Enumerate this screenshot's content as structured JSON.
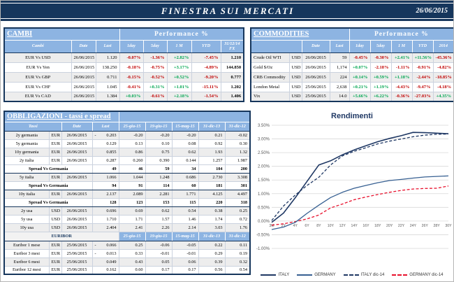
{
  "header": {
    "title": "FINESTRA SUI MERCATI",
    "date": "26/06/2015"
  },
  "colors": {
    "navy": "#16365C",
    "band_blue": "#8DB4E2",
    "positive": "#00A651",
    "negative": "#C00000",
    "shade": "#EDEDED"
  },
  "cambi": {
    "title": "CAMBI",
    "performance_header": "Performance  %",
    "columns": {
      "name": "Cambi",
      "date": "Date",
      "last": "Last",
      "p1": "1day",
      "p2": "5day",
      "p3": "1 M",
      "p4": "YTD",
      "fx": "31/12/14 FX"
    },
    "rows": [
      {
        "name": "EUR Vs USD",
        "date": "26/06/2015",
        "last": "1.120",
        "perf": [
          "-0.07%",
          "-1.36%",
          "+2.82%",
          "-7.45%"
        ],
        "fx": "1.210"
      },
      {
        "name": "EUR Vs Yen",
        "date": "26/06/2015",
        "last": "138.250",
        "perf": [
          "-0.18%",
          "-0.75%",
          "+3.17%",
          "-4.89%"
        ],
        "fx": "144.850"
      },
      {
        "name": "EUR Vs GBP",
        "date": "26/06/2015",
        "last": "0.711",
        "perf": [
          "-0.15%",
          "-0.52%",
          "+0.52%",
          "-9.20%"
        ],
        "fx": "0.777"
      },
      {
        "name": "EUR Vs CHF",
        "date": "26/06/2015",
        "last": "1.045",
        "perf": [
          "-0.41%",
          "+0.31%",
          "+1.01%",
          "-15.11%"
        ],
        "fx": "1.202"
      },
      {
        "name": "EUR Vs CAD",
        "date": "26/06/2015",
        "last": "1.384",
        "perf": [
          "+0.03%",
          "-0.61%",
          "+2.18%",
          "-1.54%"
        ],
        "fx": "1.406"
      }
    ]
  },
  "commodities": {
    "title": "COMMODITIES",
    "performance_header": "Performance  %",
    "columns": {
      "date": "Date",
      "last": "Last",
      "p1": "1day",
      "p2": "5day",
      "p3": "1 M",
      "p4": "YTD",
      "p5": "2014"
    },
    "rows": [
      {
        "name": "Crude Oil WTI",
        "ccy": "USD",
        "date": "26/06/2015",
        "last": "59",
        "perf": [
          "-0.45%",
          "-0.30%",
          "+2.41%",
          "+11.56%",
          "-45.36%"
        ]
      },
      {
        "name": "Gold $/Oz",
        "ccy": "USD",
        "date": "26/06/2015",
        "last": "1,174",
        "perf": [
          "+0.07%",
          "-2.18%",
          "-1.11%",
          "-0.91%",
          "-4.82%"
        ]
      },
      {
        "name": "CRB Commodity",
        "ccy": "USD",
        "date": "26/06/2015",
        "last": "224",
        "perf": [
          "+0.14%",
          "+0.59%",
          "+1.18%",
          "-2.44%",
          "-18.85%"
        ]
      },
      {
        "name": "London Metal",
        "ccy": "USD",
        "date": "25/06/2015",
        "last": "2,638",
        "perf": [
          "+0.21%",
          "+1.19%",
          "-4.43%",
          "-9.47%",
          "-4.18%"
        ]
      },
      {
        "name": "Vix",
        "ccy": "USD",
        "date": "25/06/2015",
        "last": "14.0",
        "perf": [
          "+5.66%",
          "+6.22%",
          "-0.36%",
          "-27.03%",
          "+4.35%"
        ]
      }
    ]
  },
  "obbligazioni": {
    "title": "OBBLIGAZIONI - tassi e spread",
    "columns": {
      "tassi": "Tassi",
      "date": "Date",
      "last": "Last"
    },
    "hist_columns": [
      "25-giu-15",
      "19-giu-15",
      "15-mag-15",
      "31-dic-13",
      "31-dic-12"
    ],
    "rows": [
      {
        "kind": "data",
        "name": "2y germania",
        "ccy": "EUR",
        "date": "26/06/2015",
        "last": "-0.203",
        "values": [
          "-0.20",
          "-0.20",
          "-0.20",
          "0.21",
          "-0.02"
        ],
        "shaded": true
      },
      {
        "kind": "data",
        "name": "5y germania",
        "ccy": "EUR",
        "date": "26/06/2015",
        "last": "0.129",
        "values": [
          "0.13",
          "0.10",
          "0.08",
          "0.92",
          "0.30"
        ],
        "shaded": false
      },
      {
        "kind": "data",
        "name": "10y germania",
        "ccy": "EUR",
        "date": "26/06/2015",
        "last": "0.855",
        "values": [
          "0.86",
          "0.75",
          "0.62",
          "1.93",
          "1.32"
        ],
        "shaded": true
      },
      {
        "kind": "data",
        "name": "2y italia",
        "ccy": "EUR",
        "date": "26/06/2015",
        "last": "0.287",
        "values": [
          "0.260",
          "0.390",
          "0.144",
          "1.257",
          "1.987"
        ],
        "shaded": false
      },
      {
        "kind": "spread",
        "label": "Spread Vs Germania",
        "last": "49",
        "values": [
          "46",
          "59",
          "34",
          "104",
          "200"
        ]
      },
      {
        "kind": "data",
        "name": "5y italia",
        "ccy": "EUR",
        "date": "26/06/2015",
        "last": "1.066",
        "values": [
          "1.044",
          "1.248",
          "0.686",
          "2.730",
          "3.308"
        ],
        "shaded": true
      },
      {
        "kind": "spread",
        "label": "Spread Vs Germania",
        "last": "94",
        "values": [
          "91",
          "114",
          "60",
          "181",
          "301"
        ]
      },
      {
        "kind": "data",
        "name": "10y italia",
        "ccy": "EUR",
        "date": "26/06/2015",
        "last": "2.137",
        "values": [
          "2.089",
          "2.281",
          "1.771",
          "4.125",
          "4.497"
        ],
        "shaded": true
      },
      {
        "kind": "spread",
        "label": "Spread Vs Germania",
        "last": "128",
        "values": [
          "123",
          "153",
          "115",
          "220",
          "318"
        ]
      },
      {
        "kind": "data",
        "name": "2y usa",
        "ccy": "USD",
        "date": "26/06/2015",
        "last": "0.696",
        "values": [
          "0.69",
          "0.62",
          "0.54",
          "0.38",
          "0.25"
        ],
        "shaded": true
      },
      {
        "kind": "data",
        "name": "5y usa",
        "ccy": "USD",
        "date": "26/06/2015",
        "last": "1.710",
        "values": [
          "1.71",
          "1.57",
          "1.46",
          "1.74",
          "0.72"
        ],
        "shaded": false
      },
      {
        "kind": "data",
        "name": "10y usa",
        "ccy": "USD",
        "date": "26/06/2015",
        "last": "2.404",
        "values": [
          "2.41",
          "2.26",
          "2.14",
          "3.03",
          "1.76"
        ],
        "shaded": true
      }
    ]
  },
  "euribor": {
    "title": "EURIBOR",
    "hist_columns": [
      "25-giu-15",
      "19-giu-15",
      "15-mag-15",
      "31-dic-13",
      "31-dic-12"
    ],
    "rows": [
      {
        "kind": "data",
        "name": "Euribor 1 mese",
        "ccy": "EUR",
        "date": "25/06/2015",
        "last": "-0.066",
        "values": [
          "0.25",
          "-0.06",
          "-0.05",
          "0.22",
          "0.11"
        ],
        "shaded": true
      },
      {
        "kind": "data",
        "name": "Euribor 3 mesi",
        "ccy": "EUR",
        "date": "25/06/2015",
        "last": "-0.013",
        "values": [
          "0.33",
          "-0.01",
          "-0.01",
          "0.29",
          "0.19"
        ],
        "shaded": false
      },
      {
        "kind": "data",
        "name": "Euribor 6 mesi",
        "ccy": "EUR",
        "date": "25/06/2015",
        "last": "0.049",
        "values": [
          "0.43",
          "0.05",
          "0.06",
          "0.39",
          "0.32"
        ],
        "shaded": true
      },
      {
        "kind": "data",
        "name": "Euribor 12 mesi",
        "ccy": "EUR",
        "date": "25/06/2015",
        "last": "0.162",
        "values": [
          "0.60",
          "0.17",
          "0.17",
          "0.56",
          "0.54"
        ],
        "shaded": false
      }
    ]
  },
  "chart_data": {
    "type": "line",
    "title": "Rendimenti",
    "categories": [
      "3M",
      "2Y",
      "4Y",
      "6Y",
      "8Y",
      "10Y",
      "12Y",
      "14Y",
      "16Y",
      "18Y",
      "20Y",
      "22Y",
      "24Y",
      "26Y",
      "28Y",
      "30Y"
    ],
    "series": [
      {
        "name": "ITALY",
        "style": "solid",
        "color": "#1F3864",
        "width": 1.6,
        "values": [
          -0.05,
          0.29,
          0.85,
          1.45,
          2.05,
          2.2,
          2.42,
          2.6,
          2.75,
          2.9,
          3.02,
          3.12,
          3.24,
          3.23,
          3.21,
          3.19
        ]
      },
      {
        "name": "GERMANY",
        "style": "solid",
        "color": "#376092",
        "width": 1.3,
        "values": [
          -0.31,
          -0.22,
          -0.05,
          0.28,
          0.58,
          0.86,
          1.05,
          1.2,
          1.3,
          1.4,
          1.48,
          1.52,
          1.57,
          1.61,
          1.63,
          1.65
        ]
      },
      {
        "name": "ITALY dic-14",
        "style": "dashed",
        "color": "#1F3864",
        "width": 1.3,
        "values": [
          0.02,
          0.55,
          0.95,
          1.3,
          1.6,
          2.05,
          2.38,
          2.55,
          2.68,
          2.82,
          2.92,
          3.0,
          3.08,
          3.14,
          3.17,
          3.18
        ]
      },
      {
        "name": "GERMANY dic-14",
        "style": "dashed",
        "color": "#E8112D",
        "width": 1.3,
        "values": [
          -0.15,
          -0.1,
          -0.02,
          0.08,
          0.22,
          0.48,
          0.62,
          0.78,
          0.88,
          0.97,
          1.05,
          1.12,
          1.17,
          1.19,
          1.2,
          1.28
        ]
      }
    ],
    "ylim": [
      -1.0,
      3.5
    ],
    "ystep": 0.5,
    "ytick_format": "0.00%",
    "grid": true,
    "legend_position": "bottom"
  }
}
